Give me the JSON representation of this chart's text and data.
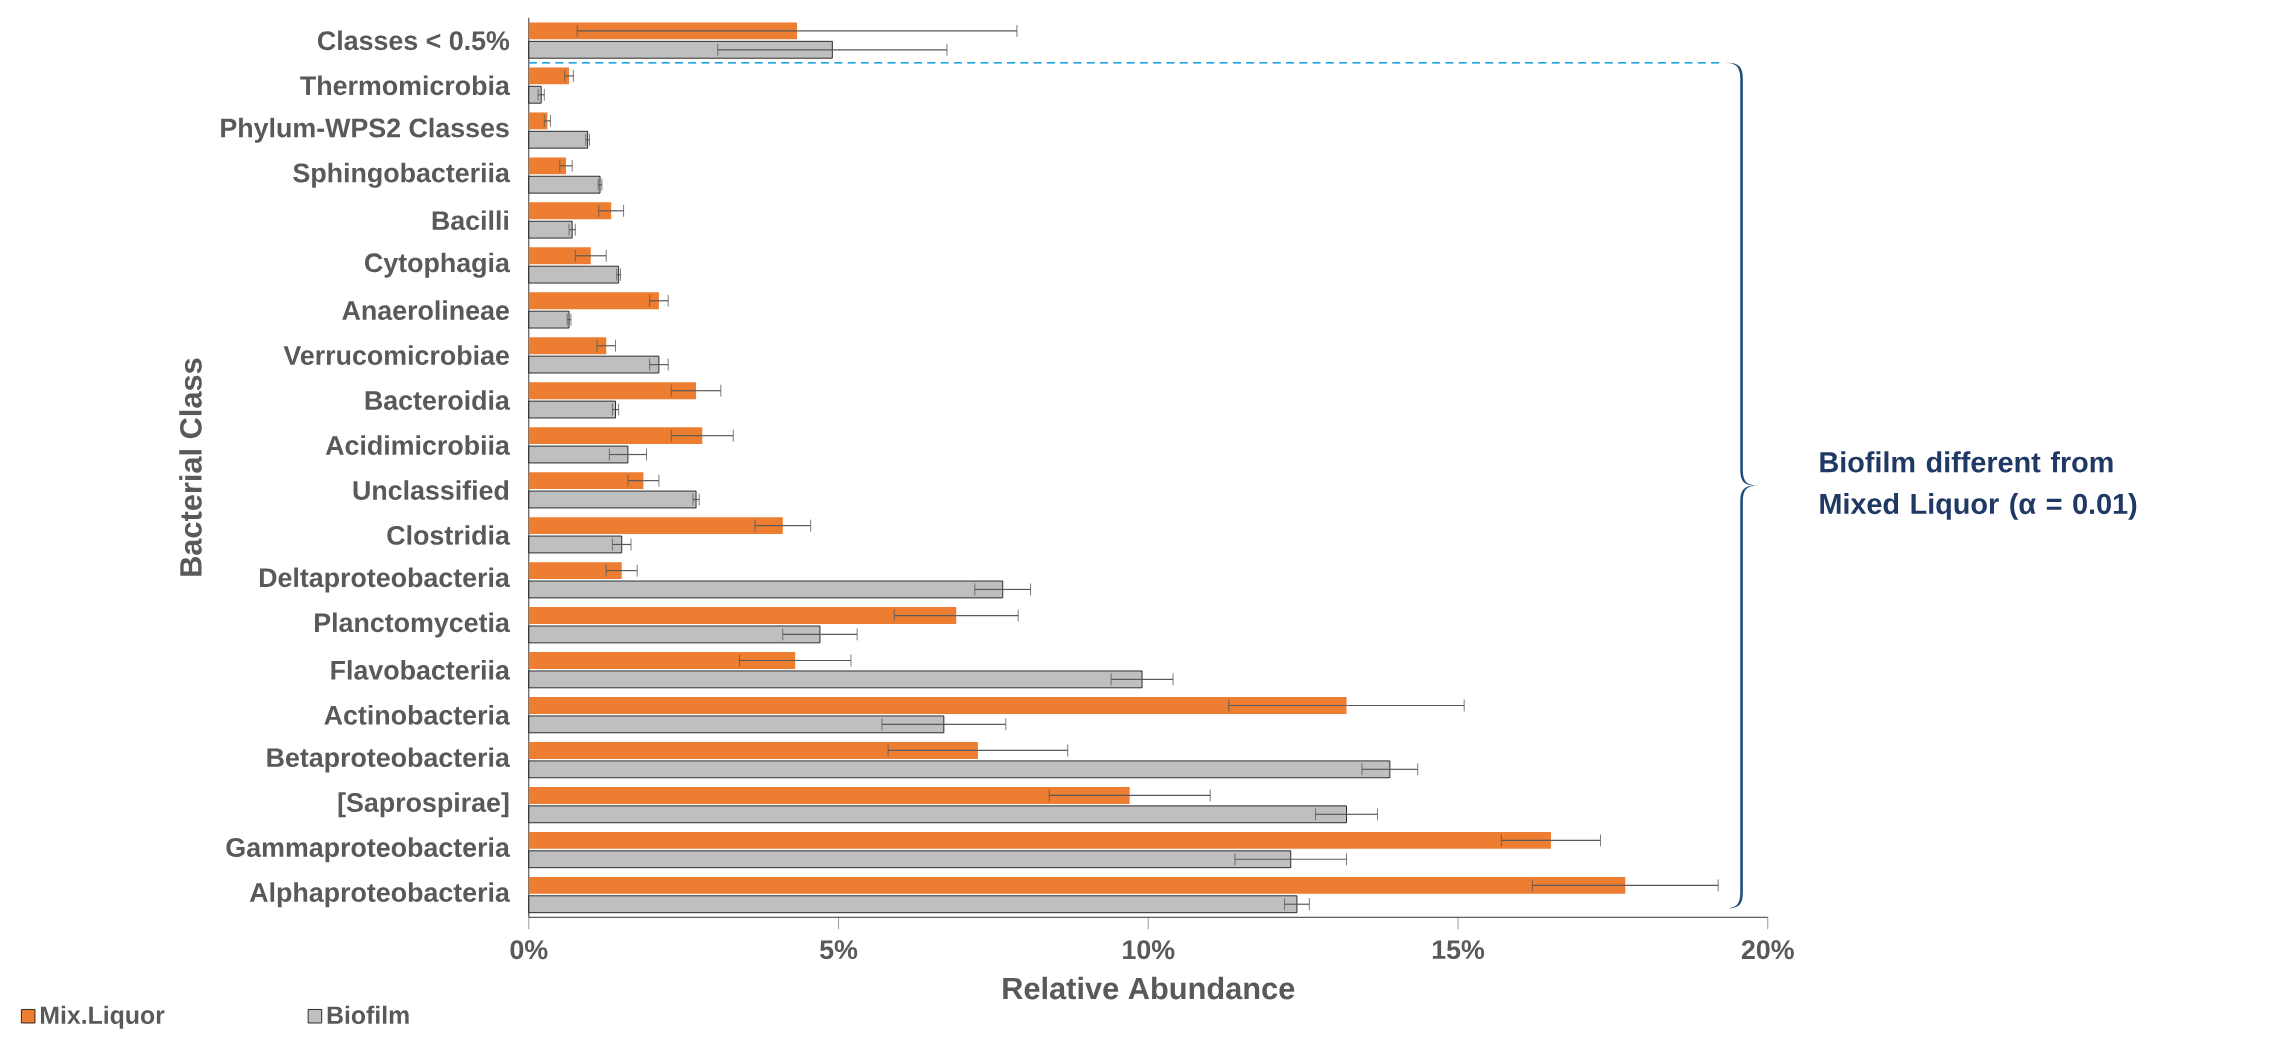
{
  "chart_data": {
    "type": "bar",
    "orientation": "horizontal",
    "xlabel": "Relative Abundance",
    "ylabel": "Bacterial Class",
    "categories": [
      "Classes < 0.5%",
      "Thermomicrobia",
      "Phylum-WPS2 Classes",
      "Sphingobacteriia",
      "Bacilli",
      "Cytophagia",
      "Anaerolineae",
      "Verrucomicrobiae",
      "Bacteroidia",
      "Acidimicrobiia",
      "Unclassified",
      "Clostridia",
      "Deltaproteobacteria",
      "Planctomycetia",
      "Flavobacteriia",
      "Actinobacteria",
      "Betaproteobacteria",
      "[Saprospirae]",
      "Gammaproteobacteria",
      "Alphaproteobacteria"
    ],
    "series": [
      {
        "name": "Mix.Liquor",
        "color": "#ed7d31",
        "values": [
          4.33,
          0.65,
          0.3,
          0.6,
          1.33,
          1.0,
          2.1,
          1.25,
          2.7,
          2.8,
          1.85,
          4.1,
          1.5,
          6.9,
          4.3,
          13.2,
          7.25,
          9.7,
          16.5,
          17.7
        ],
        "errors": [
          3.55,
          0.07,
          0.05,
          0.1,
          0.2,
          0.25,
          0.15,
          0.15,
          0.4,
          0.5,
          0.25,
          0.45,
          0.25,
          1.0,
          0.9,
          1.9,
          1.45,
          1.3,
          0.8,
          1.5
        ]
      },
      {
        "name": "Biofilm",
        "color": "#bfbfbf",
        "values": [
          4.9,
          0.2,
          0.95,
          1.15,
          0.7,
          1.45,
          0.65,
          2.1,
          1.4,
          1.6,
          2.7,
          1.5,
          7.65,
          4.7,
          9.9,
          6.7,
          13.9,
          13.2,
          12.3,
          12.4
        ],
        "errors": [
          1.85,
          0.05,
          0.03,
          0.03,
          0.05,
          0.03,
          0.03,
          0.15,
          0.05,
          0.3,
          0.05,
          0.15,
          0.45,
          0.6,
          0.5,
          1.0,
          0.45,
          0.5,
          0.9,
          0.2
        ]
      }
    ],
    "xlim": [
      0,
      20
    ],
    "xticks": [
      {
        "value": 0,
        "label": "0%"
      },
      {
        "value": 5,
        "label": "5%"
      },
      {
        "value": 10,
        "label": "10%"
      },
      {
        "value": 15,
        "label": "15%"
      },
      {
        "value": 20,
        "label": "20%"
      }
    ],
    "annotations": [
      "Biofilm different from Mixed Liquor (α = 0.01)"
    ],
    "legend": "bottom left",
    "grid": false
  }
}
